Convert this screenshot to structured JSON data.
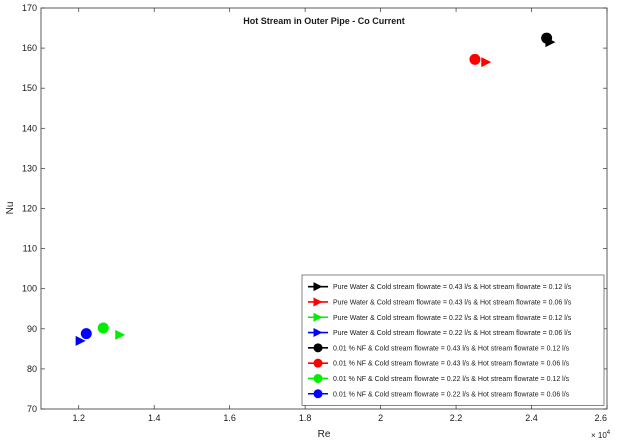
{
  "chart_data": {
    "type": "scatter",
    "title": "Hot Stream in Outer Pipe - Co Current",
    "xlabel": "Re",
    "ylabel": "Nu",
    "xlim": [
      1.1,
      2.6
    ],
    "ylim": [
      70,
      170
    ],
    "x_scale_note": "× 10^4",
    "x_exponent_base": "× 10",
    "x_exponent_power": "4",
    "xticks": [
      "1.2",
      "1.4",
      "1.6",
      "1.8",
      "2",
      "2.2",
      "2.4",
      "2.6"
    ],
    "yticks": [
      "70",
      "80",
      "90",
      "100",
      "110",
      "120",
      "130",
      "140",
      "150",
      "160",
      "170"
    ],
    "legend_position": "bottom-right",
    "grid": false,
    "series": [
      {
        "name": "Pure Water & Cold stream flowrate = 0.43 l/s & Hot stream flowrate = 0.12 l/s",
        "color": "#000000",
        "marker": "triangle-right",
        "points": [
          {
            "x": 2.45,
            "y": 161.5
          }
        ]
      },
      {
        "name": "Pure Water & Cold stream flowrate = 0.43 l/s & Hot stream flowrate = 0.06 l/s",
        "color": "#ff0000",
        "marker": "triangle-right",
        "points": [
          {
            "x": 2.28,
            "y": 156.5
          }
        ]
      },
      {
        "name": "Pure Water & Cold stream flowrate = 0.22 l/s & Hot stream flowrate = 0.12 l/s",
        "color": "#00ee00",
        "marker": "triangle-right",
        "points": [
          {
            "x": 1.31,
            "y": 88.5
          }
        ]
      },
      {
        "name": "Pure Water & Cold stream flowrate = 0.22 l/s & Hot stream flowrate = 0.06 l/s",
        "color": "#0000ff",
        "marker": "triangle-right",
        "points": [
          {
            "x": 1.205,
            "y": 87.0
          }
        ]
      },
      {
        "name": "0.01 % NF & Cold stream flowrate = 0.43 l/s & Hot stream flowrate = 0.12 l/s",
        "color": "#000000",
        "marker": "circle",
        "points": [
          {
            "x": 2.44,
            "y": 162.5
          }
        ]
      },
      {
        "name": "0.01 % NF & Cold stream flowrate = 0.43 l/s & Hot stream flowrate = 0.06 l/s",
        "color": "#ff0000",
        "marker": "circle",
        "points": [
          {
            "x": 2.25,
            "y": 157.2
          }
        ]
      },
      {
        "name": "0.01 % NF & Cold stream flowrate = 0.22 l/s & Hot stream flowrate = 0.12 l/s",
        "color": "#00ee00",
        "marker": "circle",
        "points": [
          {
            "x": 1.265,
            "y": 90.2
          }
        ]
      },
      {
        "name": "0.01 % NF  & Cold stream flowrate = 0.22 l/s & Hot stream flowrate = 0.06 l/s",
        "color": "#0000ff",
        "marker": "circle",
        "points": [
          {
            "x": 1.22,
            "y": 88.8
          }
        ]
      }
    ]
  }
}
